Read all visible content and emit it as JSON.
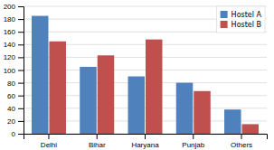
{
  "chart_data": {
    "type": "bar",
    "categories": [
      "Delhi",
      "Bihar",
      "Haryana",
      "Punjab",
      "Others"
    ],
    "series": [
      {
        "name": "Hostel A",
        "color": "#4F81BD",
        "values": [
          185,
          105,
          90,
          80,
          38
        ]
      },
      {
        "name": "Hostel B",
        "color": "#C0504D",
        "values": [
          145,
          123,
          148,
          67,
          15
        ]
      }
    ],
    "ylim": [
      0,
      200
    ],
    "yticks": [
      0,
      20,
      40,
      60,
      80,
      100,
      120,
      140,
      160,
      180,
      200
    ],
    "grid": true,
    "legend": "upper right"
  }
}
